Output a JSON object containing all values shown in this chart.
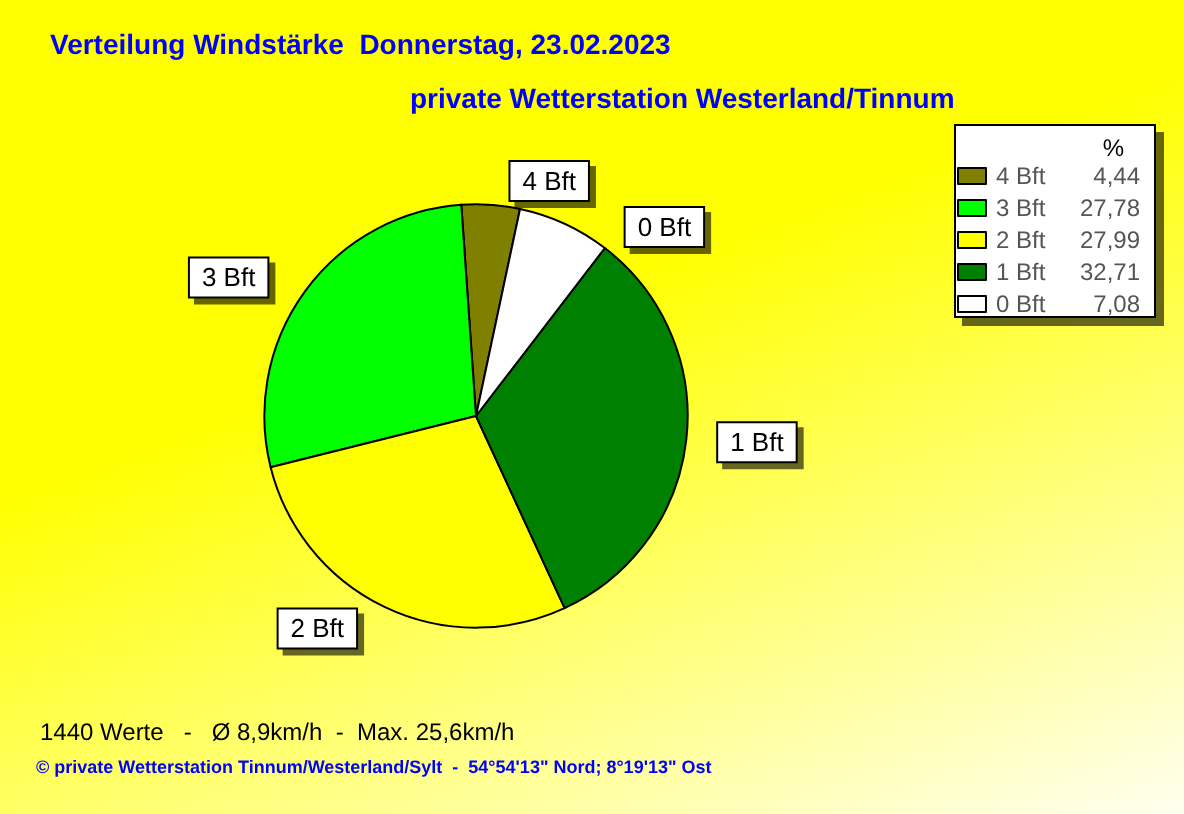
{
  "chart_data": {
    "type": "pie",
    "title": "Verteilung Windstärke  Donnerstag, 23.02.2023",
    "subtitle": "private Wetterstation Westerland/Tinnum",
    "legend_title": "%",
    "legend": "top right",
    "categories": [
      "4 Bft",
      "3 Bft",
      "2 Bft",
      "1 Bft",
      "0 Bft"
    ],
    "values": [
      4.44,
      27.78,
      27.99,
      32.71,
      7.08
    ],
    "value_labels": [
      "4,44",
      "27,78",
      "27,99",
      "32,71",
      "7,08"
    ],
    "colors": [
      "#808000",
      "#00ff00",
      "#ffff00",
      "#008000",
      "#ffffff"
    ],
    "annotations": [
      "1440 Werte   -   Ø 8,9km/h  -  Max. 25,6km/h",
      "© private Wetterstation Tinnum/Westerland/Sylt  -  54°54'13\" Nord; 8°19'13\" Ost"
    ]
  }
}
